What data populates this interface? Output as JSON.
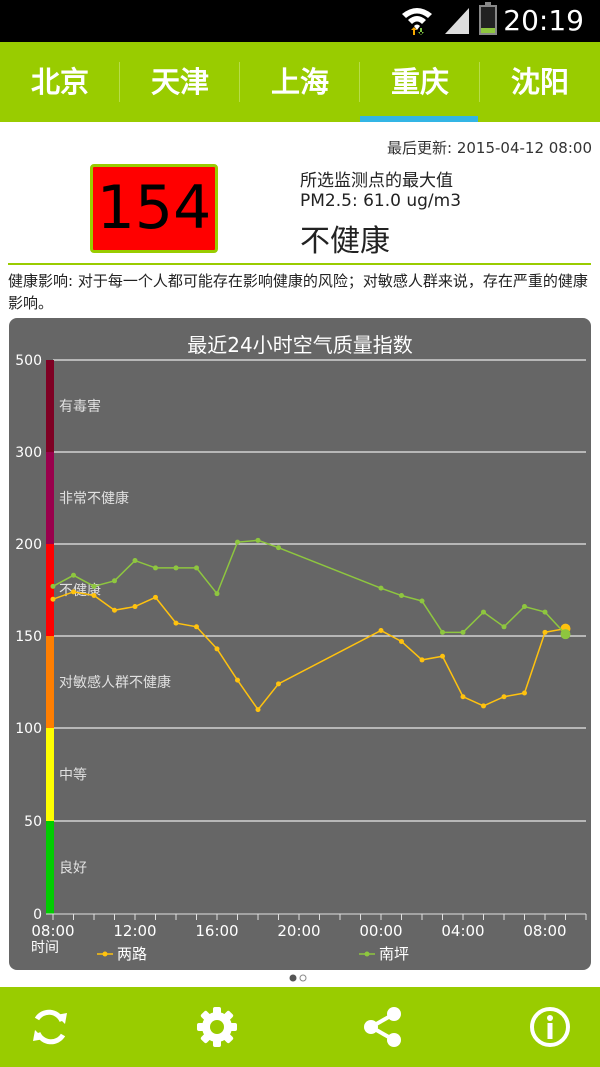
{
  "status_bar": {
    "time": "20:19"
  },
  "tabs": [
    {
      "label": "北京",
      "selected": false
    },
    {
      "label": "天津",
      "selected": false
    },
    {
      "label": "上海",
      "selected": false
    },
    {
      "label": "重庆",
      "selected": true
    },
    {
      "label": "沈阳",
      "selected": false
    }
  ],
  "summary": {
    "last_updated": "最后更新: 2015-04-12 08:00",
    "aqi": "154",
    "station_note": "所选监测点的最大值",
    "pm25": "PM2.5: 61.0 ug/m3",
    "level": "不健康",
    "health_effect": "健康影响: 对于每一个人都可能存在影响健康的风险；对敏感人群来说，存在严重的健康影响。"
  },
  "colors": {
    "accent": "#99cc00",
    "tab_indicator": "#33b5e5",
    "aqi_box": "#ff0000",
    "chart_bg": "#666666",
    "series_a": "#ffc20e",
    "series_b": "#8ec63f"
  },
  "chart_data": {
    "type": "line",
    "title": "最近24小时空气质量指数",
    "xlabel": "时间",
    "ylim": [
      0,
      500
    ],
    "y_ticks": [
      {
        "value": 0,
        "label": "0"
      },
      {
        "value": 50,
        "label": "50"
      },
      {
        "value": 100,
        "label": "100"
      },
      {
        "value": 150,
        "label": "150"
      },
      {
        "value": 200,
        "label": "200"
      },
      {
        "value": 300,
        "label": "300"
      },
      {
        "value": 500,
        "label": "500"
      }
    ],
    "x_tick_labels": [
      "08:00",
      "12:00",
      "16:00",
      "20:00",
      "00:00",
      "04:00",
      "08:00"
    ],
    "bands": [
      {
        "label": "良好",
        "color": "#00cc00",
        "from": 0,
        "to": 50
      },
      {
        "label": "中等",
        "color": "#ffff00",
        "from": 50,
        "to": 100
      },
      {
        "label": "对敏感人群不健康",
        "color": "#ff7e00",
        "from": 100,
        "to": 150
      },
      {
        "label": "不健康",
        "color": "#ff0000",
        "from": 150,
        "to": 200
      },
      {
        "label": "非常不健康",
        "color": "#99004c",
        "from": 200,
        "to": 300
      },
      {
        "label": "有毒害",
        "color": "#7e0023",
        "from": 300,
        "to": 500
      }
    ],
    "series": [
      {
        "name": "两路",
        "color": "#ffc20e",
        "values": [
          170,
          174,
          172,
          164,
          166,
          171,
          157,
          155,
          143,
          126,
          110,
          124,
          null,
          null,
          null,
          null,
          153,
          147,
          137,
          139,
          117,
          112,
          117,
          119,
          152,
          154
        ]
      },
      {
        "name": "南坪",
        "color": "#8ec63f",
        "values": [
          177,
          183,
          177,
          180,
          191,
          187,
          187,
          187,
          173,
          202,
          204,
          198,
          null,
          null,
          null,
          null,
          176,
          172,
          169,
          152,
          152,
          163,
          155,
          166,
          163,
          151
        ]
      }
    ]
  }
}
